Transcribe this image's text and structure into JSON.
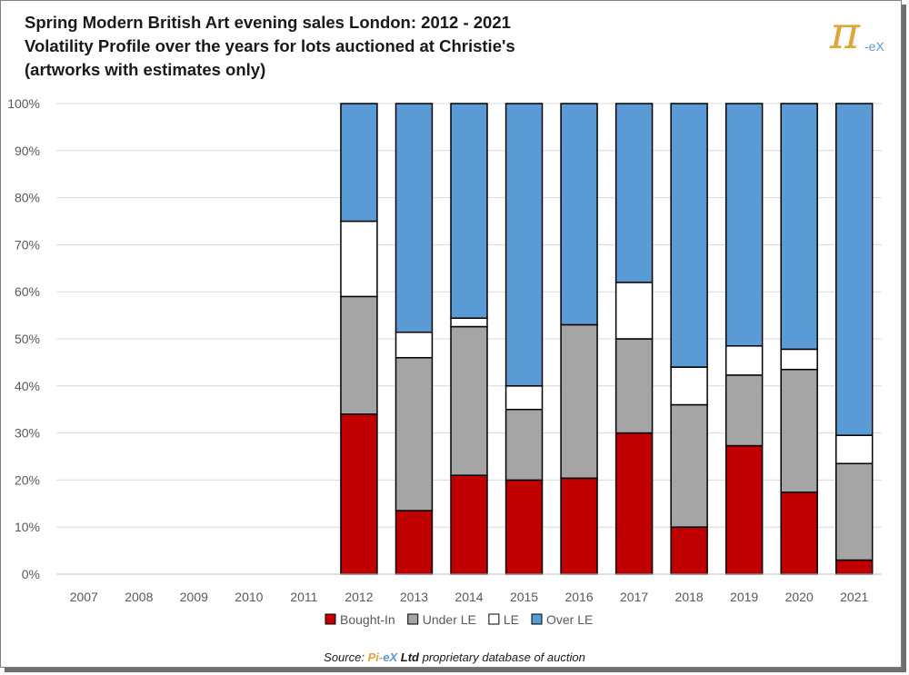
{
  "colors": {
    "bought_in": "#c00000",
    "under_le": "#a5a5a5",
    "le": "#ffffff",
    "over_le": "#5b9bd5",
    "gridline": "#d9d9d9",
    "axis_text": "#595959"
  },
  "logo": {
    "pi": "π",
    "suffix": "-eX"
  },
  "source": {
    "prefix": "Source:",
    "brand_pi": "Pi-",
    "brand_ex": "eX",
    "brand_ltd": "Ltd",
    "suffix": "proprietary database of auction"
  },
  "chart_data": {
    "type": "bar",
    "stacked": true,
    "title_lines": [
      "Spring Modern British Art evening sales London: 2012 - 2021",
      "Volatility Profile over the years for lots auctioned at Christie's",
      "(artworks with estimates only)"
    ],
    "categories": [
      "2007",
      "2008",
      "2009",
      "2010",
      "2011",
      "2012",
      "2013",
      "2014",
      "2015",
      "2016",
      "2017",
      "2018",
      "2019",
      "2020",
      "2021"
    ],
    "y_ticks": [
      "0%",
      "10%",
      "20%",
      "30%",
      "40%",
      "50%",
      "60%",
      "70%",
      "80%",
      "90%",
      "100%"
    ],
    "ylim": [
      0,
      100
    ],
    "grid": true,
    "legend_position": "bottom",
    "series": [
      {
        "name": "Bought-In",
        "values": [
          null,
          null,
          null,
          null,
          null,
          34,
          13.5,
          21,
          20,
          20.4,
          30,
          10,
          27.3,
          17.4,
          3
        ]
      },
      {
        "name": "Under LE",
        "values": [
          null,
          null,
          null,
          null,
          null,
          25,
          32.5,
          31.6,
          15,
          32.6,
          20,
          26,
          15,
          26.1,
          20.5
        ]
      },
      {
        "name": "LE",
        "values": [
          null,
          null,
          null,
          null,
          null,
          16,
          5.4,
          1.8,
          5,
          0,
          12,
          8,
          6.2,
          4.3,
          6
        ]
      },
      {
        "name": "Over LE",
        "values": [
          null,
          null,
          null,
          null,
          null,
          25,
          48.6,
          45.6,
          60,
          47,
          38,
          56,
          51.5,
          52.2,
          70.5
        ]
      }
    ]
  }
}
